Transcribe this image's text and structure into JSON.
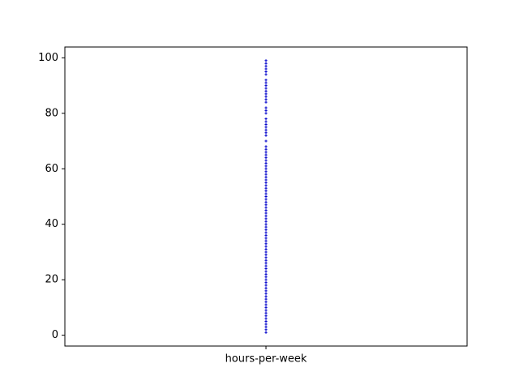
{
  "chart_data": {
    "type": "scatter",
    "title": "",
    "xlabel": "",
    "ylabel": "",
    "categories": [
      "hours-per-week"
    ],
    "ylim": [
      -3.9,
      103.9
    ],
    "yticks": [
      0,
      20,
      40,
      60,
      80,
      100
    ],
    "grid": false,
    "legend": "none",
    "marker_color": "#0000cc",
    "series": [
      {
        "category": "hours-per-week",
        "values": [
          1,
          2,
          3,
          4,
          5,
          6,
          7,
          8,
          9,
          10,
          11,
          12,
          13,
          14,
          15,
          16,
          17,
          18,
          19,
          20,
          21,
          22,
          23,
          24,
          25,
          26,
          27,
          28,
          29,
          30,
          31,
          32,
          33,
          34,
          35,
          36,
          37,
          38,
          39,
          40,
          41,
          42,
          43,
          44,
          45,
          46,
          47,
          48,
          49,
          50,
          51,
          52,
          53,
          54,
          55,
          56,
          57,
          58,
          59,
          60,
          61,
          62,
          63,
          64,
          65,
          66,
          67,
          68,
          70,
          72,
          73,
          74,
          75,
          76,
          77,
          78,
          80,
          81,
          82,
          84,
          85,
          86,
          87,
          88,
          89,
          90,
          91,
          92,
          94,
          95,
          96,
          97,
          98,
          99
        ]
      }
    ]
  }
}
